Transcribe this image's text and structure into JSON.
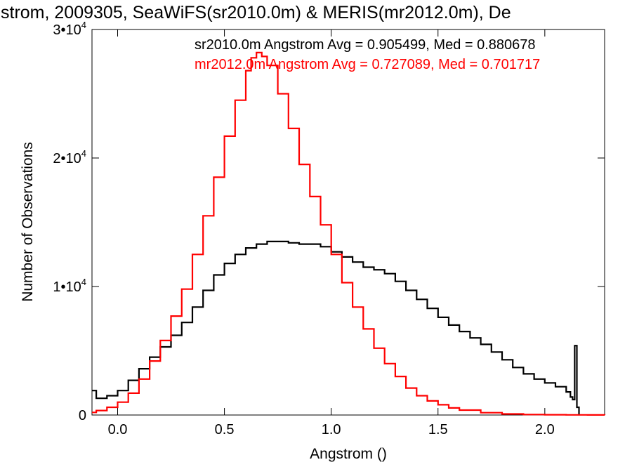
{
  "chart_data": {
    "type": "line",
    "title": "strom, 2009305, SeaWiFS(sr2010.0m) & MERIS(mr2012.0m), De",
    "xlabel": "Angstrom ()",
    "ylabel": "Number of Observations",
    "xlim": [
      -0.12,
      2.28
    ],
    "ylim": [
      0,
      30000
    ],
    "x_ticks": [
      0.0,
      0.5,
      1.0,
      1.5,
      2.0
    ],
    "x_tick_labels": [
      "0.0",
      "0.5",
      "1.0",
      "1.5",
      "2.0"
    ],
    "y_ticks": [
      {
        "value": 0,
        "label": "0",
        "exp": ""
      },
      {
        "value": 10000,
        "label": "1•10",
        "exp": "4"
      },
      {
        "value": 20000,
        "label": "2•10",
        "exp": "4"
      },
      {
        "value": 30000,
        "label": "3•10",
        "exp": "4"
      }
    ],
    "grid": false,
    "legend_position": "top-right",
    "series": [
      {
        "name": "sr2010.0m Angstrom Avg = 0.905499, Med = 0.880678",
        "color": "#000000",
        "step": true,
        "x": [
          -0.12,
          -0.1,
          -0.05,
          0.0,
          0.05,
          0.1,
          0.15,
          0.2,
          0.25,
          0.3,
          0.35,
          0.4,
          0.45,
          0.5,
          0.55,
          0.6,
          0.65,
          0.7,
          0.75,
          0.8,
          0.85,
          0.9,
          0.95,
          1.0,
          1.05,
          1.1,
          1.15,
          1.2,
          1.25,
          1.3,
          1.35,
          1.4,
          1.45,
          1.5,
          1.55,
          1.6,
          1.65,
          1.7,
          1.75,
          1.8,
          1.85,
          1.9,
          1.95,
          2.0,
          2.05,
          2.1,
          2.12,
          2.13,
          2.14,
          2.15,
          2.16
        ],
        "values": [
          1900,
          1300,
          1500,
          1900,
          2700,
          3600,
          4500,
          5300,
          6200,
          7200,
          8400,
          9700,
          10900,
          11800,
          12500,
          13000,
          13300,
          13500,
          13500,
          13400,
          13300,
          13300,
          13100,
          12700,
          12300,
          11900,
          11500,
          11300,
          11000,
          10400,
          9700,
          9000,
          8300,
          7600,
          7000,
          6500,
          6000,
          5500,
          4900,
          4300,
          3700,
          3200,
          2800,
          2500,
          2200,
          1800,
          1400,
          1200,
          5400,
          600,
          0
        ]
      },
      {
        "name": "mr2012.0m Angstrom Avg = 0.727089, Med = 0.701717",
        "color": "#ff0000",
        "step": true,
        "x": [
          -0.12,
          -0.1,
          -0.05,
          0.0,
          0.05,
          0.1,
          0.15,
          0.2,
          0.25,
          0.3,
          0.35,
          0.4,
          0.45,
          0.5,
          0.55,
          0.6,
          0.625,
          0.65,
          0.675,
          0.7,
          0.75,
          0.8,
          0.85,
          0.9,
          0.95,
          1.0,
          1.05,
          1.1,
          1.15,
          1.2,
          1.25,
          1.3,
          1.35,
          1.4,
          1.45,
          1.5,
          1.55,
          1.6,
          1.7,
          1.8,
          1.9,
          2.0,
          2.1,
          2.2,
          2.28
        ],
        "values": [
          200,
          350,
          600,
          1000,
          1700,
          2800,
          4200,
          5800,
          7700,
          9800,
          12500,
          15500,
          18500,
          21700,
          24500,
          26800,
          27800,
          28200,
          27900,
          27200,
          25000,
          22300,
          19500,
          17000,
          14800,
          12500,
          10300,
          8400,
          6700,
          5200,
          4000,
          3000,
          2100,
          1500,
          1100,
          800,
          550,
          380,
          180,
          80,
          40,
          20,
          10,
          5,
          0
        ]
      }
    ]
  }
}
